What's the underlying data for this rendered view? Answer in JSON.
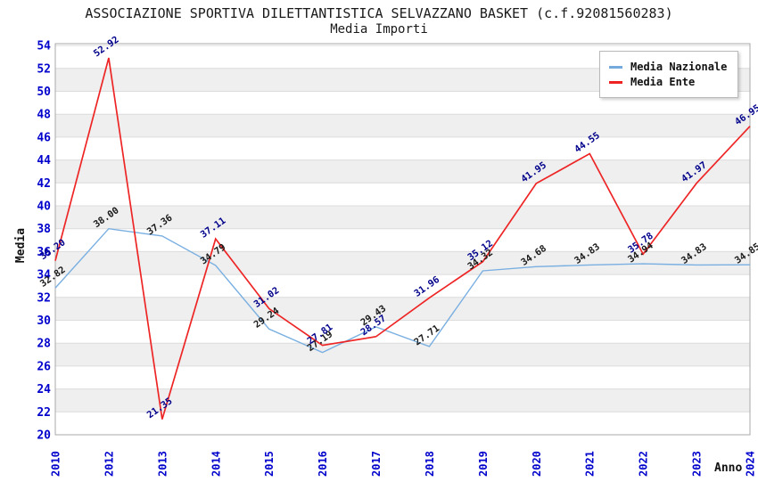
{
  "title": "ASSOCIAZIONE SPORTIVA DILETTANTISTICA SELVAZZANO BASKET (c.f.92081560283)",
  "subtitle": "Media Importi",
  "y_axis_label": "Media",
  "x_axis_label": "Anno",
  "legend": {
    "items": [
      {
        "label": "Media Nazionale",
        "color": "#74aadc"
      },
      {
        "label": "Media Ente",
        "color": "#ee2222"
      }
    ]
  },
  "chart_data": {
    "type": "line",
    "title": "Media Importi",
    "xlabel": "Anno",
    "ylabel": "Media",
    "x": [
      2010,
      2012,
      2013,
      2014,
      2015,
      2016,
      2017,
      2018,
      2019,
      2020,
      2021,
      2022,
      2023,
      2024
    ],
    "series": [
      {
        "name": "Media Nazionale",
        "color": "#79afe1",
        "label_color": "#1a1a1a",
        "values": [
          32.82,
          38.0,
          37.36,
          34.79,
          29.24,
          27.19,
          29.43,
          27.71,
          34.32,
          34.68,
          34.83,
          34.94,
          34.83,
          34.85
        ]
      },
      {
        "name": "Media Ente",
        "color": "#ee2525",
        "label_color": "#00008b",
        "values": [
          35.2,
          52.92,
          21.35,
          37.11,
          31.02,
          27.81,
          28.57,
          31.96,
          35.12,
          41.95,
          44.55,
          35.78,
          41.97,
          46.95
        ]
      }
    ],
    "ylim": [
      20,
      54
    ],
    "ytick_step": 2,
    "grid": "horizontal-bands",
    "legend_position": "top-right",
    "styles": {
      "band_fill": "#efefef",
      "grid_color": "#dcdcdc",
      "border_color": "#aaaaaa",
      "tick_label_color": "#0000cc",
      "point_label_rotation_deg": -35,
      "x_tick_rotation_deg": -90
    }
  }
}
